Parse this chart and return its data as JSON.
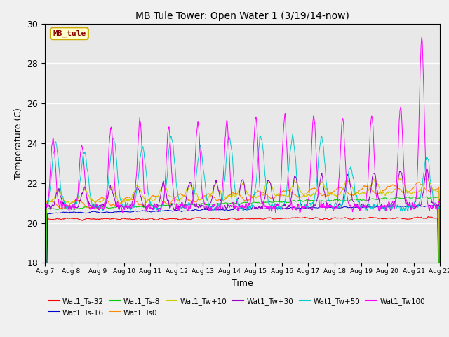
{
  "title": "MB Tule Tower: Open Water 1 (3/19/14-now)",
  "xlabel": "Time",
  "ylabel": "Temperature (C)",
  "ylim": [
    18,
    30
  ],
  "yticks": [
    18,
    20,
    22,
    24,
    26,
    28,
    30
  ],
  "annotation_text": "MB_tule",
  "annotation_color": "#8b0000",
  "annotation_bg": "#ffffcc",
  "series": [
    {
      "label": "Wat1_Ts-32",
      "color": "#ff0000"
    },
    {
      "label": "Wat1_Ts-16",
      "color": "#0000cd"
    },
    {
      "label": "Wat1_Ts-8",
      "color": "#00cc00"
    },
    {
      "label": "Wat1_Ts0",
      "color": "#ff8800"
    },
    {
      "label": "Wat1_Tw+10",
      "color": "#cccc00"
    },
    {
      "label": "Wat1_Tw+30",
      "color": "#9900cc"
    },
    {
      "label": "Wat1_Tw+50",
      "color": "#00cccc"
    },
    {
      "label": "Wat1_Tw100",
      "color": "#ff00ff"
    }
  ],
  "xtick_labels": [
    "Aug 7",
    "Aug 8",
    "Aug 9",
    "Aug 10",
    "Aug 11",
    "Aug 12",
    "Aug 13",
    "Aug 14",
    "Aug 15",
    "Aug 16",
    "Aug 17",
    "Aug 18",
    "Aug 19",
    "Aug 20",
    "Aug 21",
    "Aug 22"
  ],
  "legend_row1": [
    "Wat1_Ts-32",
    "Wat1_Ts-16",
    "Wat1_Ts-8",
    "Wat1_Ts0",
    "Wat1_Tw+10",
    "Wat1_Tw+30"
  ],
  "legend_row2": [
    "Wat1_Tw+50",
    "Wat1_Tw100"
  ]
}
